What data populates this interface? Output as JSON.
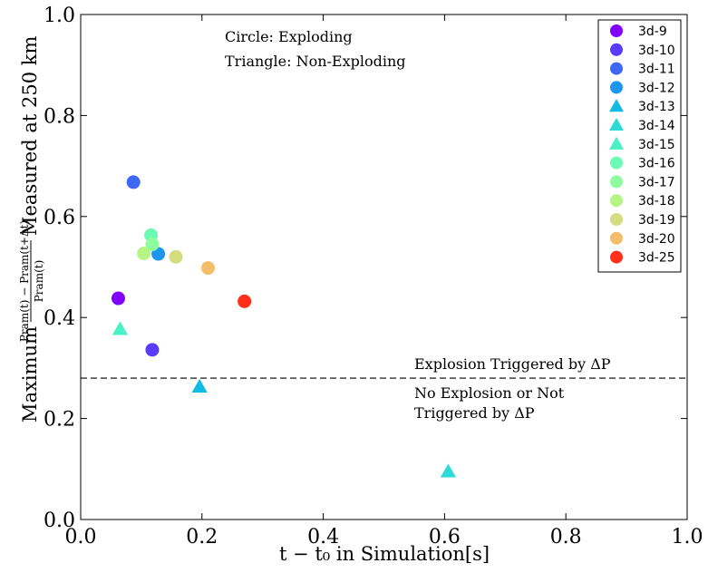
{
  "chart_data": {
    "type": "scatter",
    "xlabel": "t − t₀ in Simulation[s]",
    "ylabel": "Maximum (Pram(t) − Pram(t+Δt)) / Pram(t) Measured at 250 km",
    "ylabel_prefix": "Maximum",
    "ylabel_frac_num": "Pram(t) − Pram(t+Δt)",
    "ylabel_frac_den": "Pram(t)",
    "ylabel_suffix": "Measured at 250 km",
    "xlim": [
      0.0,
      1.0
    ],
    "ylim": [
      0.0,
      1.0
    ],
    "x_ticks": [
      "0.0",
      "0.2",
      "0.4",
      "0.6",
      "0.8",
      "1.0"
    ],
    "y_ticks": [
      "0.0",
      "0.2",
      "0.4",
      "0.6",
      "0.8",
      "1.0"
    ],
    "grid": false,
    "legend_position": "top-right",
    "threshold_y": 0.28,
    "annotations": {
      "circle_note": "Circle: Exploding",
      "triangle_note": "Triangle: Non-Exploding",
      "above_line": "Explosion Triggered by ΔP",
      "below_line_1": "No Explosion or Not",
      "below_line_2": "Triggered by ΔP"
    },
    "series": [
      {
        "name": "3d-9",
        "marker": "circle",
        "color": "#8000ff",
        "x": 0.062,
        "y": 0.438
      },
      {
        "name": "3d-10",
        "marker": "circle",
        "color": "#5a3bfb",
        "x": 0.118,
        "y": 0.336
      },
      {
        "name": "3d-11",
        "marker": "circle",
        "color": "#3f67f5",
        "x": 0.087,
        "y": 0.668
      },
      {
        "name": "3d-12",
        "marker": "circle",
        "color": "#1f96ee",
        "x": 0.128,
        "y": 0.526
      },
      {
        "name": "3d-13",
        "marker": "triangle",
        "color": "#11bbe4",
        "x": 0.196,
        "y": 0.263
      },
      {
        "name": "3d-14",
        "marker": "triangle",
        "color": "#2bdbd6",
        "x": 0.606,
        "y": 0.095
      },
      {
        "name": "3d-15",
        "marker": "triangle",
        "color": "#4af0c6",
        "x": 0.065,
        "y": 0.377
      },
      {
        "name": "3d-16",
        "marker": "circle",
        "color": "#6cfbb4",
        "x": 0.116,
        "y": 0.563
      },
      {
        "name": "3d-17",
        "marker": "circle",
        "color": "#8cfe9e",
        "x": 0.118,
        "y": 0.545
      },
      {
        "name": "3d-18",
        "marker": "circle",
        "color": "#b4f585",
        "x": 0.104,
        "y": 0.527
      },
      {
        "name": "3d-19",
        "marker": "circle",
        "color": "#d4dd80",
        "x": 0.157,
        "y": 0.52
      },
      {
        "name": "3d-20",
        "marker": "circle",
        "color": "#f4bd6a",
        "x": 0.21,
        "y": 0.498
      },
      {
        "name": "3d-25",
        "marker": "circle",
        "color": "#ff3019",
        "x": 0.27,
        "y": 0.432
      }
    ]
  }
}
